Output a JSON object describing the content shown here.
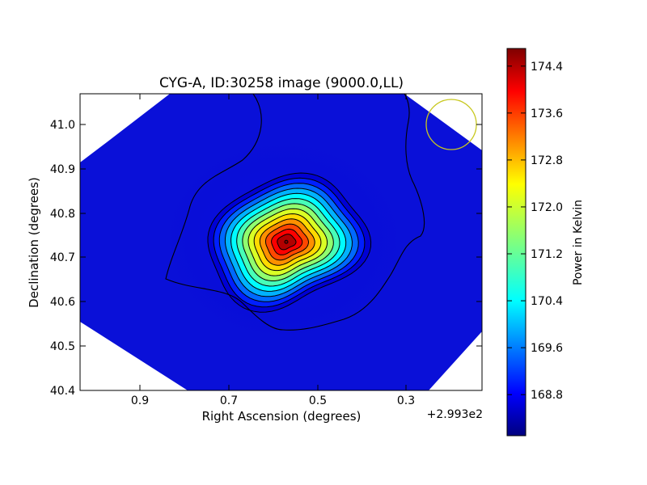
{
  "chart_data": {
    "type": "heatmap",
    "title": "CYG-A, ID:30258 image (9000.0,LL)",
    "xlabel": "Right Ascension (degrees)",
    "ylabel": "Declination (degrees)",
    "x_offset_label": "+2.993e2",
    "x_ticks": [
      "0.9",
      "0.7",
      "0.5",
      "0.3"
    ],
    "y_ticks": [
      "41.0",
      "40.9",
      "40.8",
      "40.7",
      "40.6",
      "40.5",
      "40.4"
    ],
    "colorbar": {
      "label": "Power in Kelvin",
      "ticks": [
        "174.4",
        "173.6",
        "172.8",
        "172.0",
        "171.2",
        "170.4",
        "169.6",
        "168.8"
      ],
      "range": [
        168.1,
        174.7
      ],
      "colormap": "jet"
    },
    "peak": {
      "ra_offset": 0.57,
      "dec": 40.735,
      "value": 174.6
    },
    "background_value": 168.4,
    "contour_count": 13,
    "beam_marker_color": "#c8c81e"
  }
}
